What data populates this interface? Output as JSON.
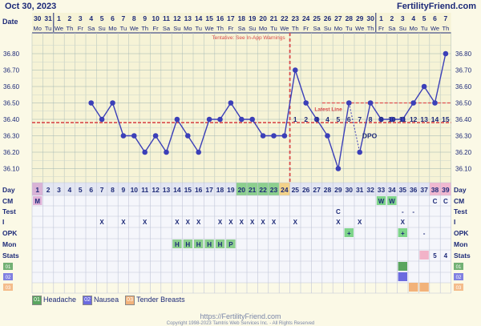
{
  "header": {
    "date": "Oct 30, 2023",
    "brand": "FertilityFriend.com"
  },
  "dates": [
    "30",
    "31",
    "1",
    "2",
    "3",
    "4",
    "5",
    "6",
    "7",
    "8",
    "9",
    "10",
    "11",
    "12",
    "13",
    "14",
    "15",
    "16",
    "17",
    "18",
    "19",
    "20",
    "21",
    "22",
    "23",
    "24",
    "25",
    "26",
    "27",
    "28",
    "29",
    "30",
    "1",
    "2",
    "3",
    "4",
    "5",
    "6",
    "7"
  ],
  "weekdays": [
    "Mo",
    "Tu",
    "We",
    "Th",
    "Fr",
    "Sa",
    "Su",
    "Mo",
    "Tu",
    "We",
    "Th",
    "Fr",
    "Sa",
    "Su",
    "Mo",
    "Tu",
    "We",
    "Th",
    "Fr",
    "Sa",
    "Su",
    "Mo",
    "Tu",
    "We",
    "Th",
    "Fr",
    "Sa",
    "Su",
    "Mo",
    "Tu",
    "We",
    "Th",
    "Fr",
    "Sa",
    "Su",
    "Mo",
    "Tu",
    "We",
    "Th"
  ],
  "month_breaks": [
    2,
    32
  ],
  "labels": {
    "date": "Date",
    "day": "Day",
    "cm": "CM",
    "test": "Test",
    "i": "I",
    "opk": "OPK",
    "mon": "Mon",
    "stats": "Stats"
  },
  "y_ticks": [
    "36.80",
    "36.70",
    "36.60",
    "36.50",
    "36.40",
    "36.30",
    "36.20",
    "36.10"
  ],
  "tentative": "Tentative: See In-App Warnings",
  "latest_line": "Latest Line",
  "dpo_label": "DPO",
  "coverline": 36.38,
  "latest_value": 36.5,
  "ovulation_day": 24,
  "chart_data": {
    "type": "line",
    "x": [
      6,
      7,
      8,
      9,
      10,
      11,
      12,
      13,
      14,
      15,
      16,
      17,
      18,
      19,
      20,
      21,
      22,
      23,
      24,
      25,
      26,
      27,
      28,
      29,
      30,
      31,
      32,
      33,
      34,
      35,
      36,
      37,
      38,
      39
    ],
    "y": [
      36.5,
      36.4,
      36.5,
      36.3,
      36.3,
      36.2,
      36.3,
      36.2,
      36.4,
      36.3,
      36.2,
      36.4,
      36.4,
      36.5,
      36.4,
      36.4,
      36.3,
      36.3,
      36.3,
      36.7,
      36.5,
      36.4,
      36.3,
      36.1,
      36.5,
      36.2,
      36.5,
      36.4,
      36.4,
      36.4,
      36.5,
      36.6,
      36.5,
      36.8
    ],
    "gaps_after": [
      30
    ],
    "ylim": [
      36.05,
      36.85
    ],
    "xlabel": "Day",
    "ylabel": "",
    "grid": true,
    "dpo": [
      "1",
      "2",
      "3",
      "4",
      "5",
      "6",
      "7",
      "8",
      "9",
      "10",
      "11",
      "12",
      "13",
      "14",
      "15"
    ]
  },
  "rows": {
    "cm": [
      {
        "d": 1,
        "t": "M",
        "bg": "#e0b2d8"
      },
      {
        "d": 33,
        "t": "W",
        "bg": "#7ed58a"
      },
      {
        "d": 34,
        "t": "W",
        "bg": "#7ed58a"
      },
      {
        "d": 38,
        "t": "C",
        "bg": ""
      },
      {
        "d": 39,
        "t": "C",
        "bg": ""
      }
    ],
    "test": [
      {
        "d": 29,
        "t": "C"
      },
      {
        "d": 35,
        "t": "-"
      },
      {
        "d": 36,
        "t": "-"
      }
    ],
    "i": [
      {
        "d": 7,
        "t": "X"
      },
      {
        "d": 9,
        "t": "X"
      },
      {
        "d": 11,
        "t": "X"
      },
      {
        "d": 14,
        "t": "X"
      },
      {
        "d": 15,
        "t": "X"
      },
      {
        "d": 16,
        "t": "X"
      },
      {
        "d": 18,
        "t": "X"
      },
      {
        "d": 19,
        "t": "X"
      },
      {
        "d": 20,
        "t": "X"
      },
      {
        "d": 21,
        "t": "X"
      },
      {
        "d": 22,
        "t": "X"
      },
      {
        "d": 23,
        "t": "X"
      },
      {
        "d": 25,
        "t": "X"
      },
      {
        "d": 29,
        "t": "X"
      },
      {
        "d": 31,
        "t": "X"
      },
      {
        "d": 35,
        "t": "X"
      }
    ],
    "opk": [
      {
        "d": 30,
        "t": "+"
      },
      {
        "d": 35,
        "t": "+"
      },
      {
        "d": 37,
        "t": "-"
      }
    ],
    "mon": [
      {
        "d": 14,
        "t": "H"
      },
      {
        "d": 15,
        "t": "H"
      },
      {
        "d": 16,
        "t": "H"
      },
      {
        "d": 17,
        "t": "H"
      },
      {
        "d": 18,
        "t": "H"
      },
      {
        "d": 19,
        "t": "P"
      }
    ],
    "stats": [
      {
        "d": 38,
        "t": "5"
      },
      {
        "d": 39,
        "t": "4"
      }
    ]
  },
  "symptom_rows": [
    {
      "code": "01",
      "color": "#5aa55f",
      "marks": [
        35
      ]
    },
    {
      "code": "02",
      "color": "#6b6bdf",
      "marks": [
        35
      ]
    },
    {
      "code": "03",
      "color": "#f2b27a",
      "marks": [
        36,
        37
      ]
    }
  ],
  "legend": [
    {
      "code": "01",
      "label": "Headache",
      "color": "#5aa55f"
    },
    {
      "code": "02",
      "label": "Nausea",
      "color": "#6b6bdf"
    },
    {
      "code": "03",
      "label": "Tender Breasts",
      "color": "#f2b27a"
    }
  ],
  "footer": {
    "url": "https://FertilityFriend.com",
    "copyright": "Copyright 1998-2023 Tamtris Web Services Inc. - All Rights Reserved"
  }
}
